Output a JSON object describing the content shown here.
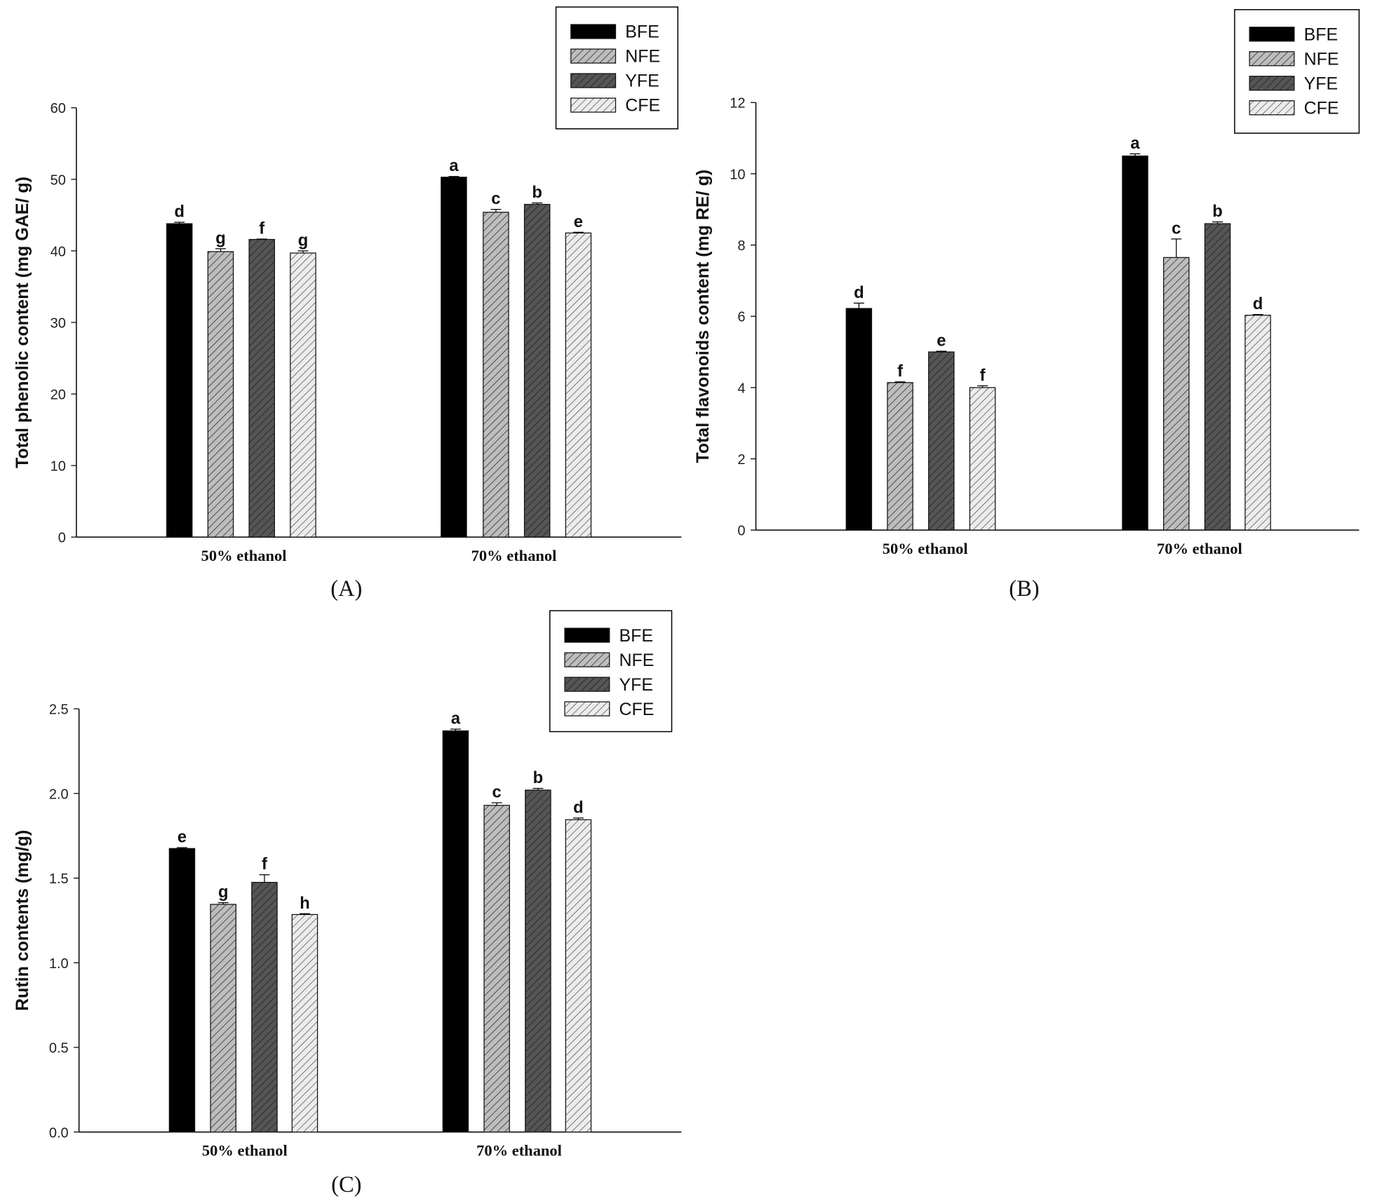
{
  "chart_data": [
    {
      "type": "bar",
      "panel_label": "(A)",
      "ylabel": "Total phenolic content (mg GAE/ g)",
      "xlabel": "",
      "ylim": [
        0,
        60
      ],
      "yticks": [
        "0",
        "10",
        "20",
        "30",
        "40",
        "50",
        "60"
      ],
      "categories": [
        "50% ethanol",
        "70% ethanol"
      ],
      "legend_position": "top-right",
      "series": [
        {
          "name": "BFE",
          "values": [
            43.8,
            50.3
          ],
          "errors": [
            0.2,
            0.1
          ],
          "letters": [
            "d",
            "a"
          ]
        },
        {
          "name": "NFE",
          "values": [
            39.9,
            45.4
          ],
          "errors": [
            0.4,
            0.4
          ],
          "letters": [
            "g",
            "c"
          ]
        },
        {
          "name": "YFE",
          "values": [
            41.6,
            46.5
          ],
          "errors": [
            0.05,
            0.2
          ],
          "letters": [
            "f",
            "b"
          ]
        },
        {
          "name": "CFE",
          "values": [
            39.7,
            42.5
          ],
          "errors": [
            0.3,
            0.1
          ],
          "letters": [
            "g",
            "e"
          ]
        }
      ]
    },
    {
      "type": "bar",
      "panel_label": "(B)",
      "ylabel": "Total flavonoids content (mg RE/ g)",
      "xlabel": "",
      "ylim": [
        0,
        12
      ],
      "yticks": [
        "0",
        "2",
        "4",
        "6",
        "8",
        "10",
        "12"
      ],
      "categories": [
        "50% ethanol",
        "70% ethanol"
      ],
      "legend_position": "top-right",
      "series": [
        {
          "name": "BFE",
          "values": [
            6.22,
            10.5
          ],
          "errors": [
            0.15,
            0.06
          ],
          "letters": [
            "d",
            "a"
          ]
        },
        {
          "name": "NFE",
          "values": [
            4.14,
            7.65
          ],
          "errors": [
            0.02,
            0.52
          ],
          "letters": [
            "f",
            "c"
          ]
        },
        {
          "name": "YFE",
          "values": [
            5.0,
            8.6
          ],
          "errors": [
            0.02,
            0.05
          ],
          "letters": [
            "e",
            "b"
          ]
        },
        {
          "name": "CFE",
          "values": [
            4.0,
            6.03
          ],
          "errors": [
            0.05,
            0.02
          ],
          "letters": [
            "f",
            "d"
          ]
        }
      ]
    },
    {
      "type": "bar",
      "panel_label": "(C)",
      "ylabel": "Rutin contents (mg/g)",
      "xlabel": "",
      "ylim": [
        0,
        2.5
      ],
      "yticks": [
        "0.0",
        "0.5",
        "1.0",
        "1.5",
        "2.0",
        "2.5"
      ],
      "categories": [
        "50% ethanol",
        "70% ethanol"
      ],
      "legend_position": "top-right",
      "series": [
        {
          "name": "BFE",
          "values": [
            1.675,
            2.37
          ],
          "errors": [
            0.005,
            0.01
          ],
          "letters": [
            "e",
            "a"
          ]
        },
        {
          "name": "NFE",
          "values": [
            1.345,
            1.93
          ],
          "errors": [
            0.01,
            0.015
          ],
          "letters": [
            "g",
            "c"
          ]
        },
        {
          "name": "YFE",
          "values": [
            1.475,
            2.02
          ],
          "errors": [
            0.045,
            0.01
          ],
          "letters": [
            "f",
            "b"
          ]
        },
        {
          "name": "CFE",
          "values": [
            1.285,
            1.845
          ],
          "errors": [
            0.005,
            0.01
          ],
          "letters": [
            "h",
            "d"
          ]
        }
      ]
    }
  ],
  "colors": {
    "BFE": "#000000",
    "NFE": "#bdbdbd",
    "YFE": "#4d4d4d",
    "CFE": "#e6e6e6"
  }
}
